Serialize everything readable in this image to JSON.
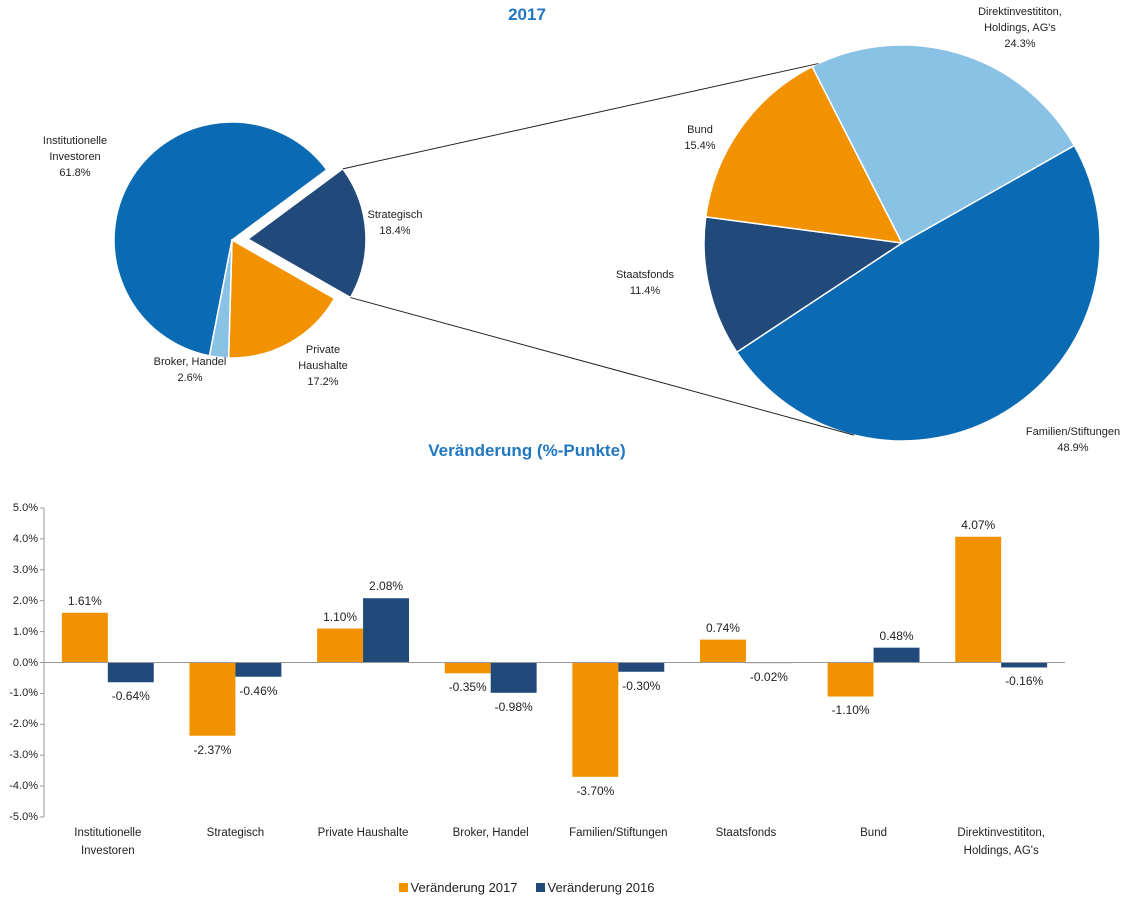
{
  "chart_data": [
    {
      "type": "pie-of-pie",
      "title": "2017",
      "categories": [
        "Institutionelle Investoren",
        "Strategisch",
        "Private Haushalte",
        "Broker, Handel"
      ],
      "values": [
        61.8,
        18.4,
        17.2,
        2.6
      ],
      "value_labels": [
        "61.8%",
        "18.4%",
        "17.2%",
        "2.6%"
      ],
      "colors": [
        "#0a6ab4",
        "#214a7b",
        "#f39200",
        "#8ac2e6"
      ],
      "split_category": "Strategisch",
      "secondary": {
        "categories": [
          "Familien/Stiftungen",
          "Staatsfonds",
          "Bund",
          "Direktinvestititon, Holdings, AG's"
        ],
        "values": [
          48.9,
          11.4,
          15.4,
          24.3
        ],
        "value_labels": [
          "48.9%",
          "11.4%",
          "15.4%",
          "24.3%"
        ],
        "colors": [
          "#0a6ab4",
          "#214a7b",
          "#f39200",
          "#8ac2e6"
        ]
      }
    },
    {
      "type": "bar",
      "title": "Veränderung (%-Punkte)",
      "categories": [
        "Institutionelle Investoren",
        "Strategisch",
        "Private Haushalte",
        "Broker, Handel",
        "Familien/Stiftungen",
        "Staatsfonds",
        "Bund",
        "Direktinvestititon, Holdings, AG's"
      ],
      "series": [
        {
          "name": "Veränderung 2017",
          "color": "#f39200",
          "values": [
            1.61,
            -2.37,
            1.1,
            -0.35,
            -3.7,
            0.74,
            -1.1,
            4.07
          ],
          "value_labels": [
            "1.61%",
            "-2.37%",
            "1.10%",
            "-0.35%",
            "-3.70%",
            "0.74%",
            "-1.10%",
            "4.07%"
          ]
        },
        {
          "name": "Veränderung 2016",
          "color": "#214a7b",
          "values": [
            -0.64,
            -0.46,
            2.08,
            -0.98,
            -0.3,
            -0.02,
            0.48,
            -0.16
          ],
          "value_labels": [
            "-0.64%",
            "-0.46%",
            "2.08%",
            "-0.98%",
            "-0.30%",
            "-0.02%",
            "0.48%",
            "-0.16%"
          ]
        }
      ],
      "ylim": [
        -5,
        5
      ],
      "yticks": [
        {
          "value": -5,
          "label": "-5.0%"
        },
        {
          "value": -4,
          "label": "-4.0%"
        },
        {
          "value": -3,
          "label": "-3.0%"
        },
        {
          "value": -2,
          "label": "-2.0%"
        },
        {
          "value": -1,
          "label": "-1.0%"
        },
        {
          "value": 0,
          "label": "0.0%"
        },
        {
          "value": 1,
          "label": "1.0%"
        },
        {
          "value": 2,
          "label": "2.0%"
        },
        {
          "value": 3,
          "label": "3.0%"
        },
        {
          "value": 4,
          "label": "4.0%"
        },
        {
          "value": 5,
          "label": "5.0%"
        }
      ],
      "grid": false,
      "legend": "bottom"
    }
  ]
}
